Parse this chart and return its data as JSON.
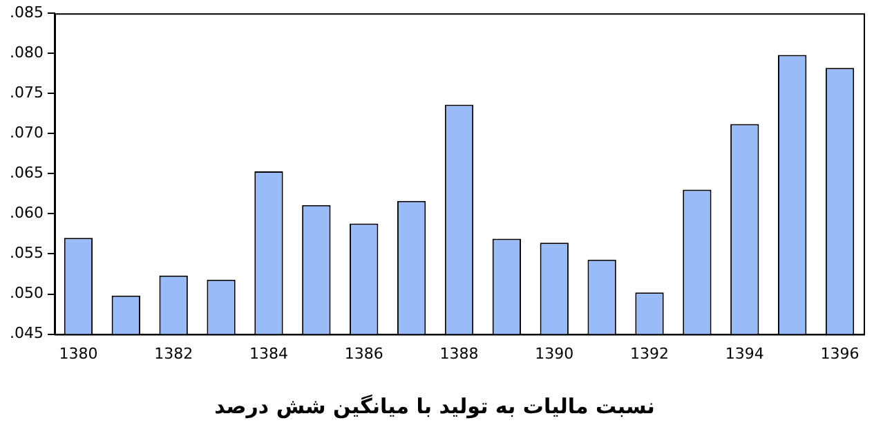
{
  "chart_data": {
    "type": "bar",
    "title": "نسبت مالیات به تولید با میانگین شش درصد",
    "categories": [
      "1380",
      null,
      "1382",
      null,
      "1384",
      null,
      "1386",
      null,
      "1388",
      null,
      "1390",
      null,
      "1392",
      null,
      "1394",
      null,
      "1396"
    ],
    "values": [
      0.057,
      0.0498,
      0.0523,
      0.0518,
      0.0653,
      0.0611,
      0.0588,
      0.0616,
      0.0736,
      0.0569,
      0.0564,
      0.0543,
      0.0502,
      0.063,
      0.0712,
      0.0798,
      0.0782
    ],
    "color": "#99bbf7",
    "ylim": [
      0.045,
      0.085
    ],
    "yticks": [
      {
        "value": 0.045,
        "label": ".045"
      },
      {
        "value": 0.05,
        "label": ".050"
      },
      {
        "value": 0.055,
        "label": ".055"
      },
      {
        "value": 0.06,
        "label": ".060"
      },
      {
        "value": 0.065,
        "label": ".065"
      },
      {
        "value": 0.07,
        "label": ".070"
      },
      {
        "value": 0.075,
        "label": ".075"
      },
      {
        "value": 0.08,
        "label": ".080"
      },
      {
        "value": 0.085,
        "label": ".085"
      }
    ],
    "grid": false,
    "legend": false
  }
}
